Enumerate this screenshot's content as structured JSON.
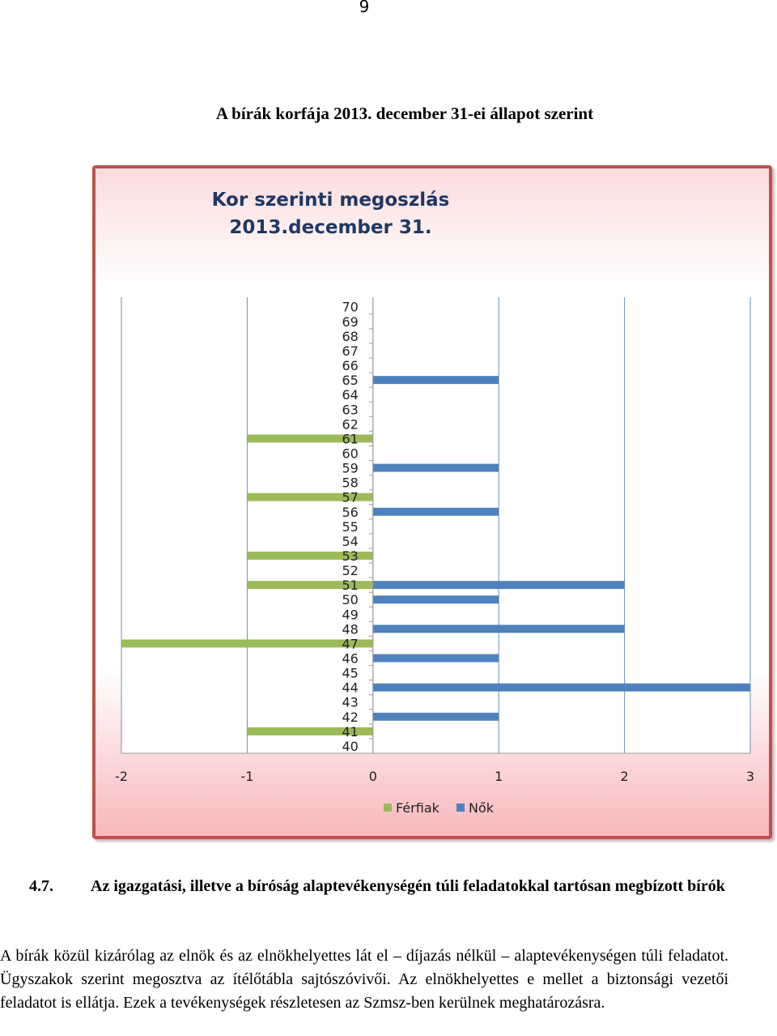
{
  "page_number": "9",
  "figure_caption": "A bírák korfája 2013. december 31-ei állapot szerint",
  "chart_data": {
    "type": "bar",
    "orientation": "horizontal",
    "title_lines": [
      "Kor szerinti megoszlás",
      "2013.december 31."
    ],
    "categories": [
      "40",
      "41",
      "42",
      "43",
      "44",
      "45",
      "46",
      "47",
      "48",
      "49",
      "50",
      "51",
      "52",
      "53",
      "54",
      "55",
      "56",
      "57",
      "58",
      "59",
      "60",
      "61",
      "62",
      "63",
      "64",
      "65",
      "66",
      "67",
      "68",
      "69",
      "70"
    ],
    "series": [
      {
        "name": "Férfiak",
        "color": "#9bbb59",
        "values": [
          0,
          -1,
          0,
          0,
          0,
          0,
          0,
          -2,
          0,
          0,
          0,
          -1,
          0,
          -1,
          0,
          0,
          0,
          -1,
          0,
          0,
          0,
          -1,
          0,
          0,
          0,
          0,
          0,
          0,
          0,
          0,
          0
        ]
      },
      {
        "name": "Nők",
        "color": "#4f81bd",
        "values": [
          0,
          0,
          1,
          0,
          3,
          0,
          1,
          0,
          2,
          0,
          1,
          2,
          0,
          0,
          0,
          0,
          1,
          0,
          0,
          1,
          0,
          0,
          0,
          0,
          0,
          1,
          0,
          0,
          0,
          0,
          0
        ]
      }
    ],
    "xlim": [
      -2,
      3
    ],
    "xticks": [
      "-2",
      "-1",
      "0",
      "1",
      "2",
      "3"
    ],
    "gridlines": true,
    "legend_position": "bottom"
  },
  "section": {
    "number": "4.7.",
    "title": "Az igazgatási, illetve a bíróság alaptevékenységén túli feladatokkal tartósan megbízott bírók"
  },
  "body_text": "A bírák közül kizárólag az elnök és az elnökhelyettes lát el – díjazás nélkül – alaptevékenységen túli feladatot. Ügyszakok szerint megosztva az ítélőtábla sajtószóvivői. Az elnökhelyettes e mellet a biztonsági vezetői feladatot is ellátja. Ezek a tevékenységek részletesen az Szmsz-ben kerülnek meghatározásra."
}
